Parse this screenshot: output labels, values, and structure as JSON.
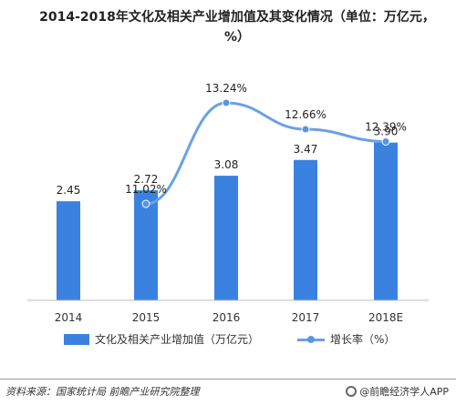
{
  "title": "2014-2018年文化及相关产业增加值及其变化情况（单位：万亿元，%）",
  "chart_data": {
    "type": "bar",
    "categories": [
      "2014",
      "2015",
      "2016",
      "2017",
      "2018E"
    ],
    "series": [
      {
        "name": "文化及相关产业增加值（万亿元）",
        "type": "bar",
        "values": [
          2.45,
          2.72,
          3.08,
          3.47,
          3.9
        ],
        "labels": [
          "2.45",
          "2.72",
          "3.08",
          "3.47",
          "3.90"
        ],
        "color": "#3b82e0"
      },
      {
        "name": "增长率（%）",
        "type": "line",
        "values": [
          null,
          11.02,
          13.24,
          12.66,
          12.39
        ],
        "labels": [
          "",
          "11.02%",
          "13.24%",
          "12.66%",
          "12.39%"
        ],
        "color": "#6aa1e6"
      }
    ],
    "bar_ylim": [
      0,
      4.5
    ],
    "line_ylim": [
      0,
      14
    ],
    "grid": false,
    "legend_position": "bottom"
  },
  "legend": {
    "bar_label": "文化及相关产业增加值（万亿元）",
    "line_label": "增长率（%）"
  },
  "footer": {
    "source": "资料来源：国家统计局  前瞻产业研究院整理",
    "brand": "@前瞻经济学人APP"
  }
}
